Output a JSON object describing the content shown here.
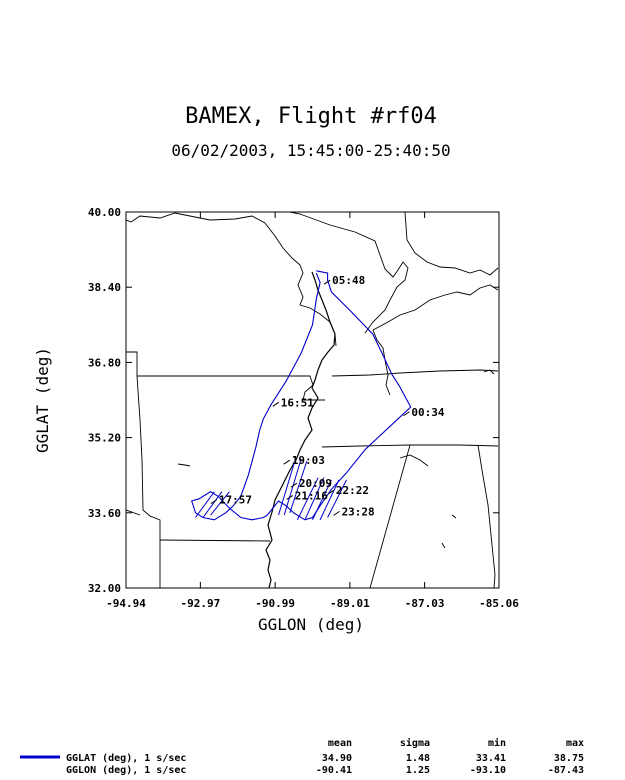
{
  "chart_data": {
    "type": "line",
    "title": "BAMEX, Flight #rf04",
    "subtitle": "06/02/2003, 15:45:00-25:40:50",
    "xlabel": "GGLON (deg)",
    "ylabel": "GGLAT (deg)",
    "xlim": [
      -94.94,
      -85.06
    ],
    "ylim": [
      32.0,
      40.0
    ],
    "x_ticks": [
      "-94.94",
      "-92.97",
      "-90.99",
      "-89.01",
      "-87.03",
      "-85.06"
    ],
    "y_ticks": [
      "32.00",
      "33.60",
      "35.20",
      "36.80",
      "38.40",
      "40.00"
    ],
    "grid": false,
    "series": [
      {
        "name": "GGLAT (deg), 1 s/sec",
        "color": "#0000cc",
        "x": [
          -89.9,
          -89.6,
          -89.6,
          -89.5,
          -89.0,
          -88.4,
          -88.1,
          -87.9,
          -87.7,
          -87.4,
          -88.0,
          -88.6,
          -89.1,
          -89.5,
          -89.8,
          -90.0,
          -90.2,
          -90.5,
          -90.7,
          -90.9,
          -91.1,
          -91.2,
          -91.3,
          -91.6,
          -91.9,
          -92.2,
          -92.5,
          -92.7,
          -93.0,
          -93.2,
          -93.1,
          -92.9,
          -92.6,
          -92.3,
          -92.1,
          -91.9,
          -91.7,
          -91.5,
          -91.4,
          -91.3,
          -91.1,
          -90.7,
          -90.3,
          -90.0,
          -89.9,
          -89.8,
          -89.9
        ],
        "y": [
          38.75,
          38.7,
          38.55,
          38.3,
          37.9,
          37.4,
          36.9,
          36.55,
          36.3,
          35.85,
          35.4,
          34.95,
          34.45,
          34.1,
          33.75,
          33.5,
          33.45,
          33.6,
          33.75,
          33.85,
          33.65,
          33.55,
          33.5,
          33.45,
          33.5,
          33.7,
          33.95,
          34.05,
          33.9,
          33.85,
          33.6,
          33.5,
          33.45,
          33.6,
          33.75,
          33.95,
          34.4,
          35.0,
          35.35,
          35.6,
          35.9,
          36.4,
          37.0,
          37.6,
          38.15,
          38.5,
          38.7
        ]
      }
    ],
    "annotations": [
      {
        "label": "05:48",
        "x": -89.48,
        "y": 38.55
      },
      {
        "label": "16:51",
        "x": -90.84,
        "y": 35.95
      },
      {
        "label": "00:34",
        "x": -87.38,
        "y": 35.75
      },
      {
        "label": "19:03",
        "x": -90.55,
        "y": 34.72
      },
      {
        "label": "17:57",
        "x": -92.48,
        "y": 33.88
      },
      {
        "label": "20:09",
        "x": -90.36,
        "y": 34.23
      },
      {
        "label": "21:16",
        "x": -90.47,
        "y": 33.97
      },
      {
        "label": "22:22",
        "x": -89.38,
        "y": 34.08
      },
      {
        "label": "23:28",
        "x": -89.23,
        "y": 33.63
      }
    ],
    "stats": {
      "headers": [
        "mean",
        "sigma",
        "min",
        "max"
      ],
      "rows": [
        {
          "name": "GGLAT (deg), 1 s/sec",
          "values": [
            "34.90",
            "1.48",
            "33.41",
            "38.75"
          ]
        },
        {
          "name": "GGLON (deg), 1 s/sec",
          "values": [
            "-90.41",
            "1.25",
            "-93.10",
            "-87.43"
          ]
        }
      ]
    }
  },
  "colors": {
    "track": "#0000cc",
    "map": "#000000"
  }
}
